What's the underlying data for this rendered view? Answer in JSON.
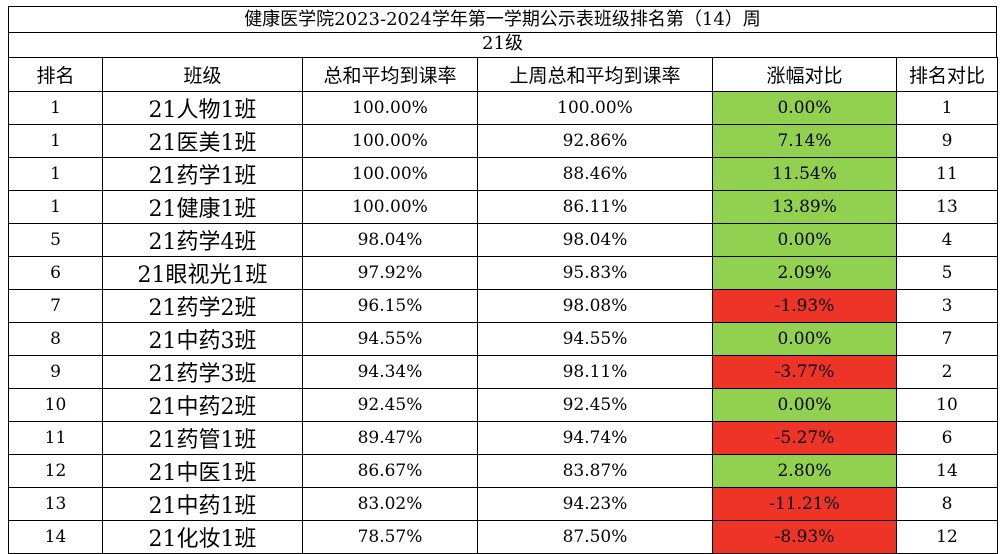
{
  "title": "健康医学院2023-2024学年第一学期公示表班级排名第（14）周",
  "grade": "21级",
  "headers": [
    "排名",
    "班级",
    "总和平均到课率",
    "上周总和平均到课率",
    "涨幅对比",
    "排名对比"
  ],
  "colors": {
    "increase": "#92d050",
    "decrease": "#ee3327"
  },
  "rows": [
    {
      "rank": "1",
      "class": "21人物1班",
      "avg": "100.00%",
      "last": "100.00%",
      "change": "0.00%",
      "trend": "up",
      "prev_rank": "1"
    },
    {
      "rank": "1",
      "class": "21医美1班",
      "avg": "100.00%",
      "last": "92.86%",
      "change": "7.14%",
      "trend": "up",
      "prev_rank": "9"
    },
    {
      "rank": "1",
      "class": "21药学1班",
      "avg": "100.00%",
      "last": "88.46%",
      "change": "11.54%",
      "trend": "up",
      "prev_rank": "11"
    },
    {
      "rank": "1",
      "class": "21健康1班",
      "avg": "100.00%",
      "last": "86.11%",
      "change": "13.89%",
      "trend": "up",
      "prev_rank": "13"
    },
    {
      "rank": "5",
      "class": "21药学4班",
      "avg": "98.04%",
      "last": "98.04%",
      "change": "0.00%",
      "trend": "up",
      "prev_rank": "4"
    },
    {
      "rank": "6",
      "class": "21眼视光1班",
      "avg": "97.92%",
      "last": "95.83%",
      "change": "2.09%",
      "trend": "up",
      "prev_rank": "5"
    },
    {
      "rank": "7",
      "class": "21药学2班",
      "avg": "96.15%",
      "last": "98.08%",
      "change": "-1.93%",
      "trend": "down",
      "prev_rank": "3"
    },
    {
      "rank": "8",
      "class": "21中药3班",
      "avg": "94.55%",
      "last": "94.55%",
      "change": "0.00%",
      "trend": "up",
      "prev_rank": "7"
    },
    {
      "rank": "9",
      "class": "21药学3班",
      "avg": "94.34%",
      "last": "98.11%",
      "change": "-3.77%",
      "trend": "down",
      "prev_rank": "2"
    },
    {
      "rank": "10",
      "class": "21中药2班",
      "avg": "92.45%",
      "last": "92.45%",
      "change": "0.00%",
      "trend": "up",
      "prev_rank": "10"
    },
    {
      "rank": "11",
      "class": "21药管1班",
      "avg": "89.47%",
      "last": "94.74%",
      "change": "-5.27%",
      "trend": "down",
      "prev_rank": "6"
    },
    {
      "rank": "12",
      "class": "21中医1班",
      "avg": "86.67%",
      "last": "83.87%",
      "change": "2.80%",
      "trend": "up",
      "prev_rank": "14"
    },
    {
      "rank": "13",
      "class": "21中药1班",
      "avg": "83.02%",
      "last": "94.23%",
      "change": "-11.21%",
      "trend": "down",
      "prev_rank": "8"
    },
    {
      "rank": "14",
      "class": "21化妆1班",
      "avg": "78.57%",
      "last": "87.50%",
      "change": "-8.93%",
      "trend": "down",
      "prev_rank": "12"
    }
  ]
}
